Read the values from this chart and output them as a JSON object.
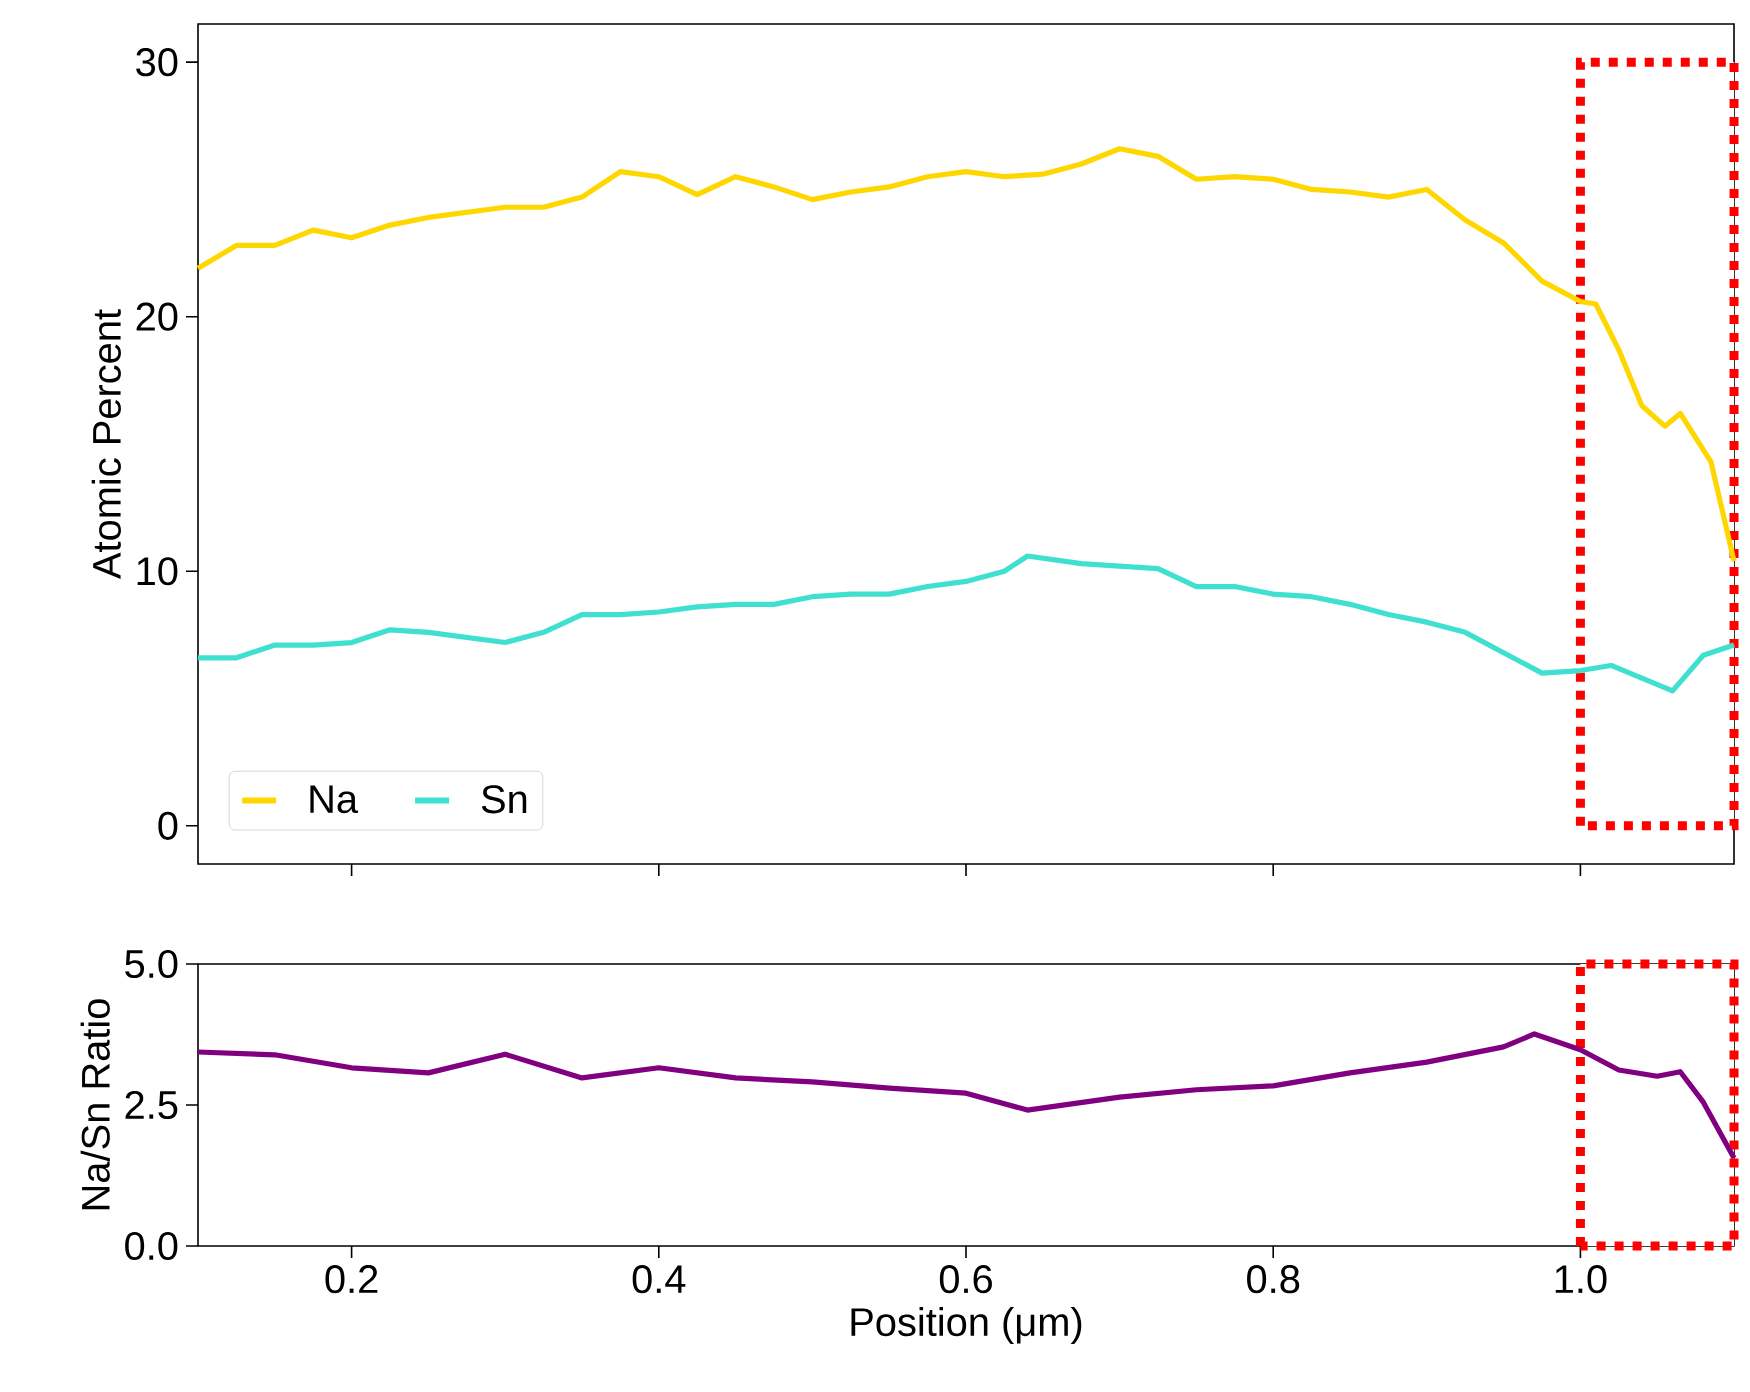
{
  "chart_data": [
    {
      "type": "line",
      "ylabel": "Atomic Percent",
      "xlim": [
        0.1,
        1.1
      ],
      "ylim": [
        -1.5,
        31.5
      ],
      "tick_labels": "y",
      "legend": "bottom left",
      "xticks": [
        0.2,
        0.4,
        0.6,
        0.8,
        1.0
      ],
      "yticks": [
        0,
        10,
        20,
        30
      ],
      "bands": [
        {
          "axis": "x",
          "from": 1.0,
          "to": 1.1,
          "color": "#ff0000"
        }
      ],
      "series": [
        {
          "name": "Na",
          "color": "#ffd700",
          "x": [
            0.1,
            0.125,
            0.15,
            0.175,
            0.2,
            0.225,
            0.25,
            0.275,
            0.3,
            0.325,
            0.35,
            0.375,
            0.4,
            0.425,
            0.45,
            0.475,
            0.5,
            0.525,
            0.55,
            0.575,
            0.6,
            0.625,
            0.65,
            0.675,
            0.7,
            0.725,
            0.75,
            0.775,
            0.8,
            0.825,
            0.85,
            0.875,
            0.9,
            0.925,
            0.95,
            0.975,
            1.0,
            1.01,
            1.025,
            1.04,
            1.055,
            1.065,
            1.085,
            1.1
          ],
          "values": [
            21.9,
            22.8,
            22.8,
            23.4,
            23.1,
            23.6,
            23.9,
            24.1,
            24.3,
            24.3,
            24.7,
            25.7,
            25.5,
            24.8,
            25.5,
            25.1,
            24.6,
            24.9,
            25.1,
            25.5,
            25.7,
            25.5,
            25.6,
            26.0,
            26.6,
            26.3,
            25.4,
            25.5,
            25.4,
            25.0,
            24.9,
            24.7,
            25.0,
            23.8,
            22.9,
            21.4,
            20.6,
            20.5,
            18.7,
            16.5,
            15.7,
            16.2,
            14.3,
            10.4
          ]
        },
        {
          "name": "Sn",
          "color": "#40e0d0",
          "x": [
            0.1,
            0.125,
            0.15,
            0.175,
            0.2,
            0.225,
            0.25,
            0.275,
            0.3,
            0.325,
            0.35,
            0.375,
            0.4,
            0.425,
            0.45,
            0.475,
            0.5,
            0.525,
            0.55,
            0.575,
            0.6,
            0.625,
            0.64,
            0.675,
            0.7,
            0.725,
            0.75,
            0.775,
            0.8,
            0.825,
            0.85,
            0.875,
            0.9,
            0.925,
            0.95,
            0.975,
            1.0,
            1.02,
            1.04,
            1.06,
            1.08,
            1.1
          ],
          "values": [
            6.6,
            6.6,
            7.1,
            7.1,
            7.2,
            7.7,
            7.6,
            7.4,
            7.2,
            7.6,
            8.3,
            8.3,
            8.4,
            8.6,
            8.7,
            8.7,
            9.0,
            9.1,
            9.1,
            9.4,
            9.6,
            10.0,
            10.6,
            10.3,
            10.2,
            10.1,
            9.4,
            9.4,
            9.1,
            9.0,
            8.7,
            8.3,
            8.0,
            7.6,
            6.8,
            6.0,
            6.1,
            6.3,
            5.8,
            5.3,
            6.7,
            7.1
          ]
        }
      ]
    },
    {
      "type": "line",
      "xlabel": "Position (μm)",
      "ylabel": "Na/Sn Ratio",
      "xlim": [
        0.1,
        1.1
      ],
      "ylim": [
        0,
        5
      ],
      "xticks": [
        {
          "value": 0.2,
          "label": "0.2"
        },
        {
          "value": 0.4,
          "label": "0.4"
        },
        {
          "value": 0.6,
          "label": "0.6"
        },
        {
          "value": 0.8,
          "label": "0.8"
        },
        {
          "value": 1.0,
          "label": "1.0"
        }
      ],
      "yticks": [
        {
          "value": 0,
          "label": "0.0"
        },
        {
          "value": 2.5,
          "label": "2.5"
        },
        {
          "value": 5,
          "label": "5.0"
        }
      ],
      "bands": [
        {
          "axis": "x",
          "from": 1.0,
          "to": 1.1,
          "color": "#ff0000"
        }
      ],
      "series": [
        {
          "color": "#800080",
          "x": [
            0.1,
            0.15,
            0.2,
            0.25,
            0.3,
            0.35,
            0.4,
            0.45,
            0.5,
            0.55,
            0.6,
            0.64,
            0.7,
            0.75,
            0.8,
            0.85,
            0.9,
            0.95,
            0.97,
            1.0,
            1.025,
            1.05,
            1.065,
            1.08,
            1.1
          ],
          "values": [
            3.44,
            3.39,
            3.16,
            3.07,
            3.4,
            2.98,
            3.16,
            2.98,
            2.91,
            2.8,
            2.71,
            2.41,
            2.64,
            2.77,
            2.84,
            3.07,
            3.26,
            3.53,
            3.76,
            3.48,
            3.12,
            3.01,
            3.09,
            2.55,
            1.56
          ]
        }
      ]
    }
  ]
}
